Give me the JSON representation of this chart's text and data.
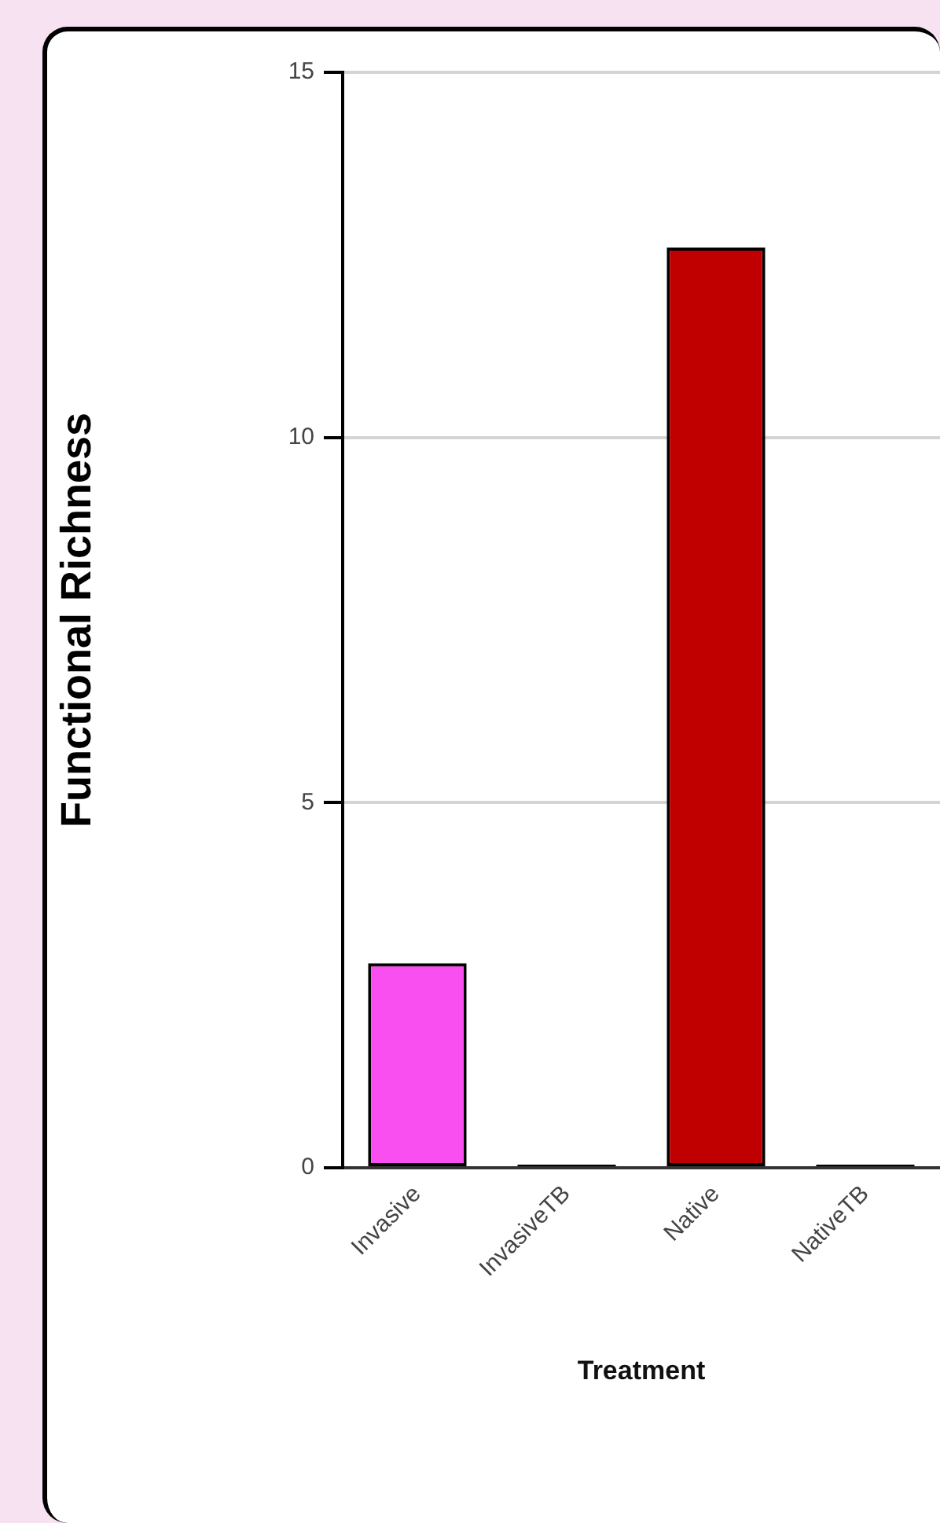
{
  "chart_data": {
    "type": "bar",
    "xlabel": "Treatment",
    "ylabel": "Functional Richness",
    "categories": [
      "Invasive",
      "InvasiveTB",
      "Native",
      "NativeTB"
    ],
    "values": [
      2.8,
      0,
      12.6,
      0
    ],
    "colors": [
      "#f94ff0",
      "#000000",
      "#c00000",
      "#000000"
    ],
    "ylim": [
      0,
      15
    ],
    "yticks": [
      0,
      5,
      10,
      15
    ],
    "grid": "y"
  }
}
